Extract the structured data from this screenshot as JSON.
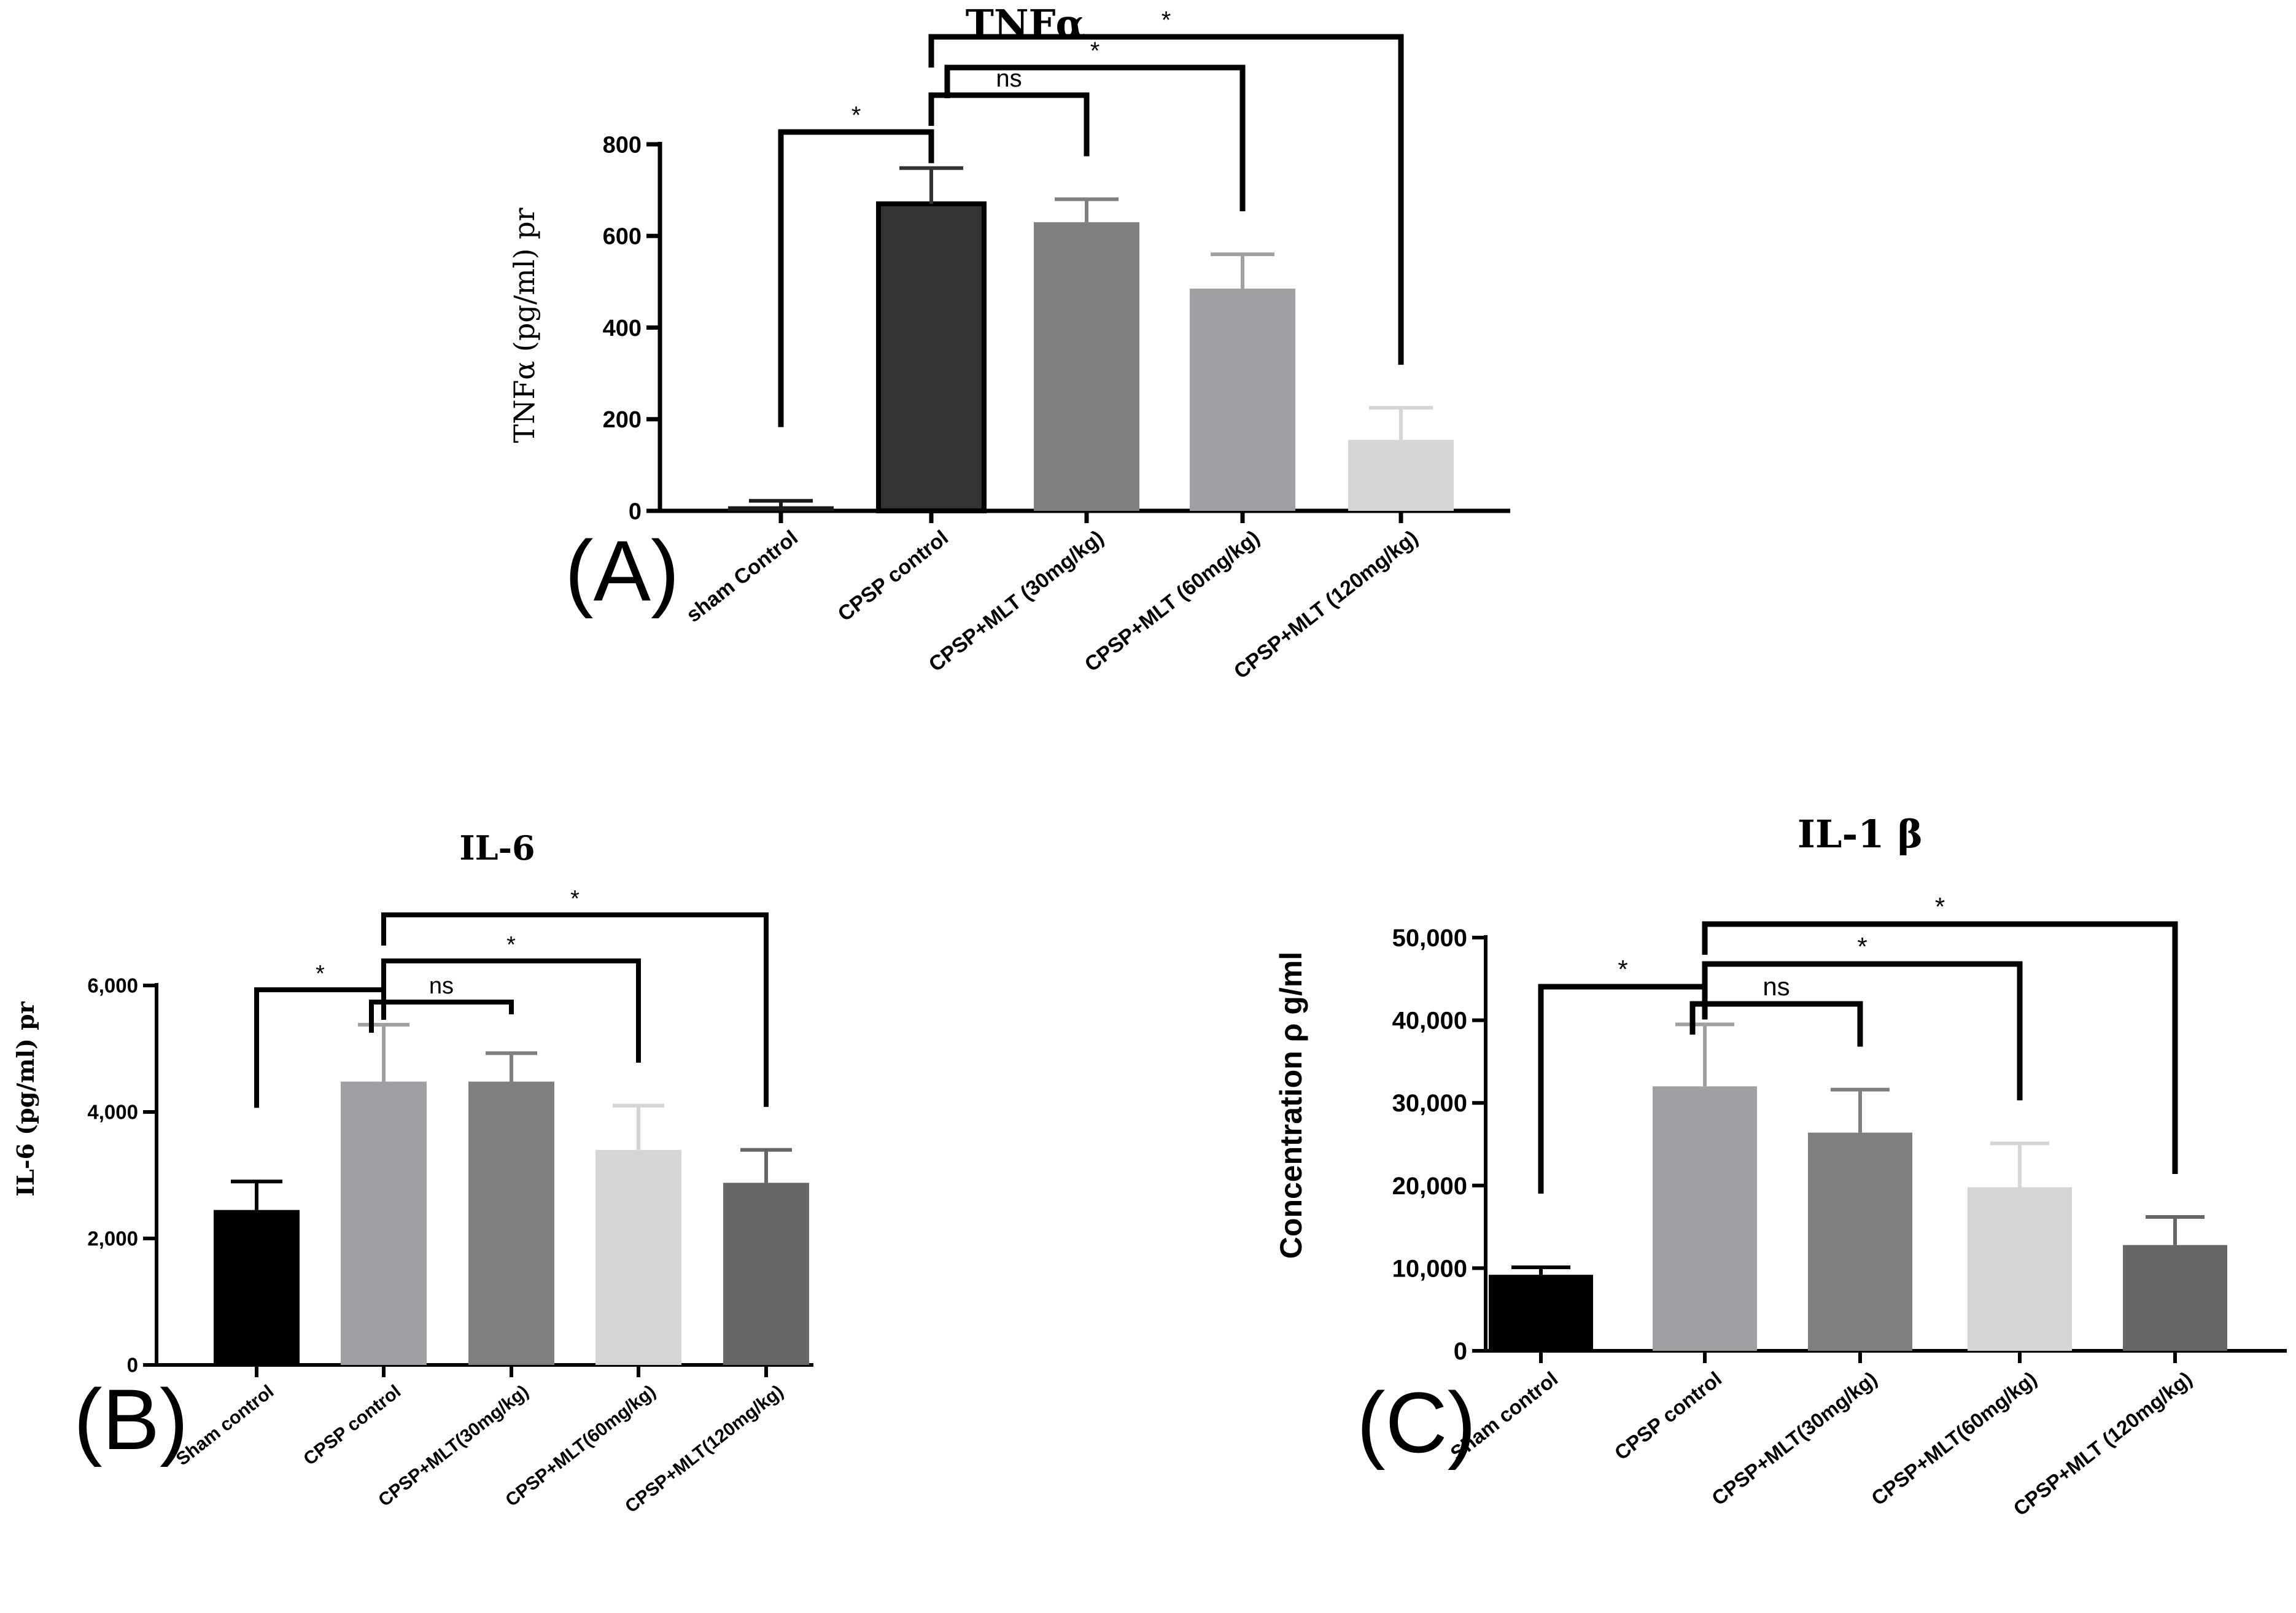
{
  "chart_data": [
    {
      "type": "bar",
      "panel_label": "(A)",
      "title": "TNFα",
      "ylabel": "TNFα (pg/ml) pr",
      "xlabel": "",
      "ylim": [
        0,
        800
      ],
      "yticks": [
        0,
        200,
        400,
        600,
        800
      ],
      "yticks_labels": [
        "0",
        "200",
        "400",
        "600",
        "800"
      ],
      "categories": [
        "sham Control",
        "CPSP control",
        "CPSP+MLT (30mg/kg)",
        "CPSP+MLT (60mg/kg)",
        "CPSP+MLT (120mg/kg)"
      ],
      "values": [
        10,
        670,
        630,
        485,
        155
      ],
      "errors": [
        12,
        78,
        50,
        75,
        70
      ],
      "bar_colors": [
        "#1a1a1a",
        "#333333",
        "#7f7f7f",
        "#a0a0a4",
        "#d5d5d5"
      ],
      "significance": [
        {
          "from": 0,
          "to": 1,
          "label": "*"
        },
        {
          "from": 1,
          "to": 2,
          "label": "ns"
        },
        {
          "from": 1,
          "to": 3,
          "label": "*"
        },
        {
          "from": 1,
          "to": 4,
          "label": "*"
        }
      ]
    },
    {
      "type": "bar",
      "panel_label": "(B)",
      "title": "IL-6",
      "ylabel": "IL-6 (pg/ml) pr",
      "xlabel": "",
      "ylim": [
        0,
        6000
      ],
      "yticks": [
        0,
        2000,
        4000,
        6000
      ],
      "yticks_labels": [
        "0",
        "2,000",
        "4,000",
        "6,000"
      ],
      "categories": [
        "Sham control",
        "CPSP control",
        "CPSP+MLT(30mg/kg)",
        "CPSP+MLT(60mg/kg)",
        "CPSP+MLT(120mg/kg)"
      ],
      "values": [
        2450,
        4480,
        4480,
        3400,
        2880
      ],
      "errors": [
        450,
        900,
        450,
        700,
        520
      ],
      "bar_colors": [
        "#000000",
        "#a0a0a4",
        "#7f7f7f",
        "#d5d5d5",
        "#666666"
      ],
      "significance": [
        {
          "from": 0,
          "to": 1,
          "label": "*"
        },
        {
          "from": 1,
          "to": 2,
          "label": "ns"
        },
        {
          "from": 1,
          "to": 3,
          "label": "*"
        },
        {
          "from": 1,
          "to": 4,
          "label": "*"
        }
      ]
    },
    {
      "type": "bar",
      "panel_label": "(C)",
      "title": "IL-1 β",
      "ylabel": "Concentration ρ g/ml",
      "xlabel": "",
      "ylim": [
        0,
        50000
      ],
      "yticks": [
        0,
        10000,
        20000,
        30000,
        40000,
        50000
      ],
      "yticks_labels": [
        "0",
        "10,000",
        "20,000",
        "30,000",
        "40,000",
        "50,000"
      ],
      "categories": [
        "Sham control",
        "CPSP control",
        "CPSP+MLT(30mg/kg)",
        "CPSP+MLT(60mg/kg)",
        "CPSP+MLT (120mg/kg)"
      ],
      "values": [
        9200,
        32000,
        26400,
        19800,
        12800
      ],
      "errors": [
        900,
        7500,
        5200,
        5300,
        3400
      ],
      "bar_colors": [
        "#000000",
        "#a0a0a4",
        "#7f7f7f",
        "#d5d5d5",
        "#666666"
      ],
      "significance": [
        {
          "from": 0,
          "to": 1,
          "label": "*"
        },
        {
          "from": 1,
          "to": 2,
          "label": "ns"
        },
        {
          "from": 1,
          "to": 3,
          "label": "*"
        },
        {
          "from": 1,
          "to": 4,
          "label": "*"
        }
      ]
    }
  ]
}
